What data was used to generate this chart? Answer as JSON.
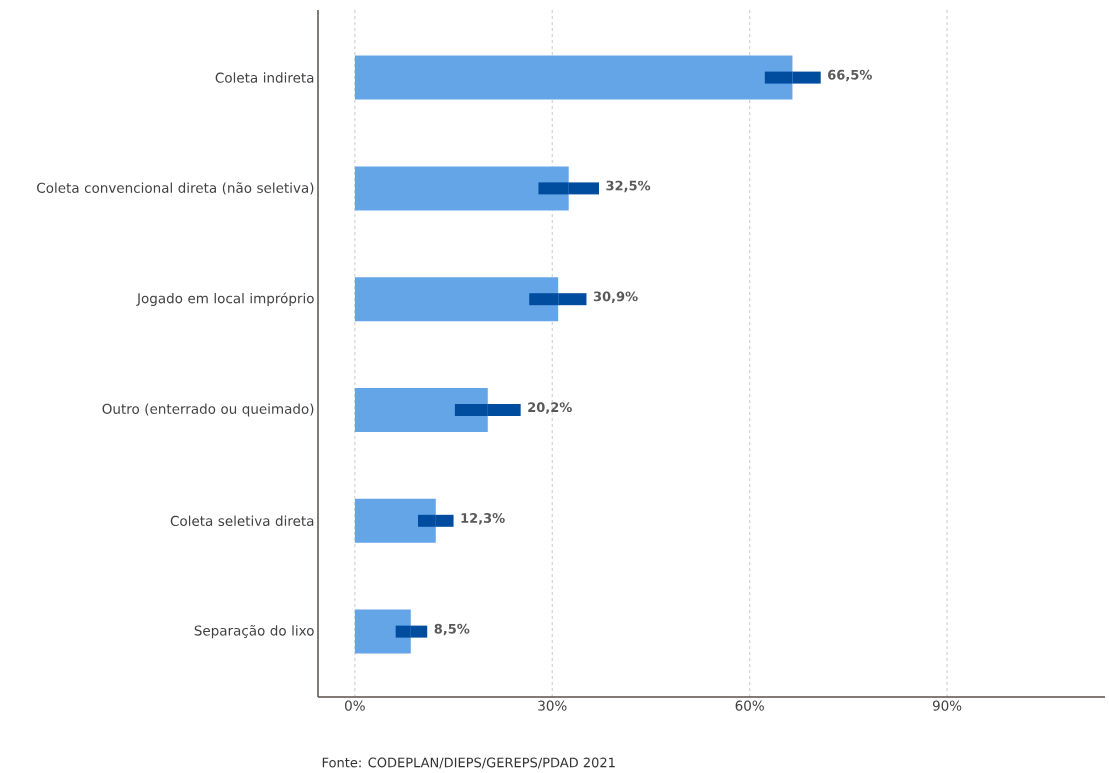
{
  "chart_data": {
    "type": "bar",
    "orientation": "horizontal",
    "categories": [
      "Coleta indireta",
      "Coleta convencional direta (não seletiva)",
      "Jogado em local impróprio",
      "Outro (enterrado ou queimado)",
      "Coleta seletiva direta",
      "Separação do lixo"
    ],
    "values": [
      66.5,
      32.5,
      30.9,
      20.2,
      12.3,
      8.5
    ],
    "errors": [
      [
        62.3,
        70.8
      ],
      [
        27.9,
        37.1
      ],
      [
        26.5,
        35.2
      ],
      [
        15.2,
        25.2
      ],
      [
        9.6,
        15.0
      ],
      [
        6.2,
        11.0
      ]
    ],
    "value_labels": [
      "66,5%",
      "32,5%",
      "30,9%",
      "20,2%",
      "12,3%",
      "8,5%"
    ],
    "color": "#64a5e8",
    "xlim": [
      -5.6,
      114
    ],
    "xticks": [
      {
        "value": 0,
        "label": "0%"
      },
      {
        "value": 30,
        "label": "30%"
      },
      {
        "value": 60,
        "label": "60%"
      },
      {
        "value": 90,
        "label": "90%"
      }
    ],
    "grid": "x",
    "annotations": [
      "Fonte: CODEPLAN/DIEPS/GEREPS/PDAD 2021"
    ]
  }
}
